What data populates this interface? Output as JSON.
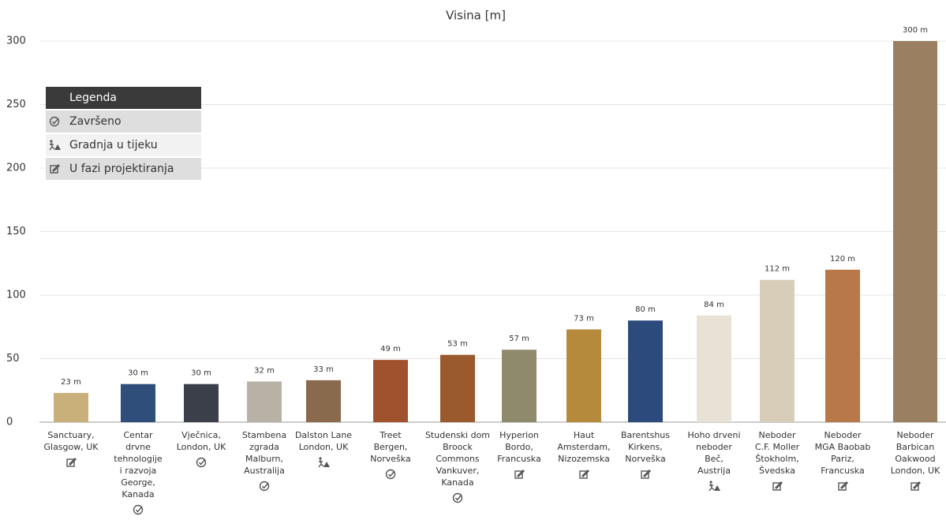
{
  "chart_data": {
    "type": "bar",
    "title": "Visina [m]",
    "categories": [
      [
        "Sanctuary,",
        "Glasgow, UK"
      ],
      [
        "Centar",
        "drvne",
        "tehnologije",
        "i razvoja",
        "George,",
        "Kanada"
      ],
      [
        "Vječnica,",
        "London, UK"
      ],
      [
        "Stambena",
        "zgrada",
        "Malburn,",
        "Australija"
      ],
      [
        "Dalston Lane",
        "London, UK"
      ],
      [
        "Treet",
        "Bergen,",
        "Norveška"
      ],
      [
        "Studenski dom",
        "Broock",
        "Commons",
        "Vankuver,",
        "Kanada"
      ],
      [
        "Hyperion",
        "Bordo,",
        "Francuska"
      ],
      [
        "Haut",
        "Amsterdam,",
        "Nizozemska"
      ],
      [
        "Barentshus",
        "Kirkens,",
        "Norveška"
      ],
      [
        "Hoho drveni",
        "neboder",
        "Beč,",
        "Austrija"
      ],
      [
        "Neboder",
        "C.F. Moller",
        "Štokholm,",
        "Švedska"
      ],
      [
        "Neboder",
        "MGA Baobab",
        "Pariz,",
        "Francuska"
      ],
      [
        "Neboder",
        "Barbican",
        "Oakwood",
        "London, UK"
      ]
    ],
    "values": [
      23,
      30,
      30,
      32,
      33,
      49,
      53,
      57,
      73,
      80,
      84,
      112,
      120,
      300
    ],
    "value_labels": [
      "23 m",
      "30 m",
      "30 m",
      "32 m",
      "33 m",
      "49 m",
      "53 m",
      "57 m",
      "73 m",
      "80 m",
      "84 m",
      "112 m",
      "120 m",
      "300 m"
    ],
    "colors": [
      "#c9b07a",
      "#2f4e7a",
      "#3a3f4a",
      "#b8b2a6",
      "#8a6a4c",
      "#a0522d",
      "#9a5a2e",
      "#8f8a6c",
      "#b58a3c",
      "#2c4a7c",
      "#e8e2d6",
      "#d8cdb8",
      "#b9784a",
      "#9a8060"
    ],
    "status": [
      "U fazi projektiranja",
      "Završeno",
      "Završeno",
      "Završeno",
      "Gradnja u tijeku",
      "Završeno",
      "Završeno",
      "U fazi projektiranja",
      "U fazi projektiranja",
      "U fazi projektiranja",
      "Gradnja u tijeku",
      "U fazi projektiranja",
      "U fazi projektiranja",
      "U fazi projektiranja"
    ],
    "legend": {
      "title": "Legenda",
      "items": [
        "Završeno",
        "Gradnja u tijeku",
        "U fazi projektiranja"
      ]
    },
    "ylim": [
      0,
      300
    ],
    "yticks": [
      0,
      50,
      100,
      150,
      200,
      250,
      300
    ],
    "grid": true
  }
}
